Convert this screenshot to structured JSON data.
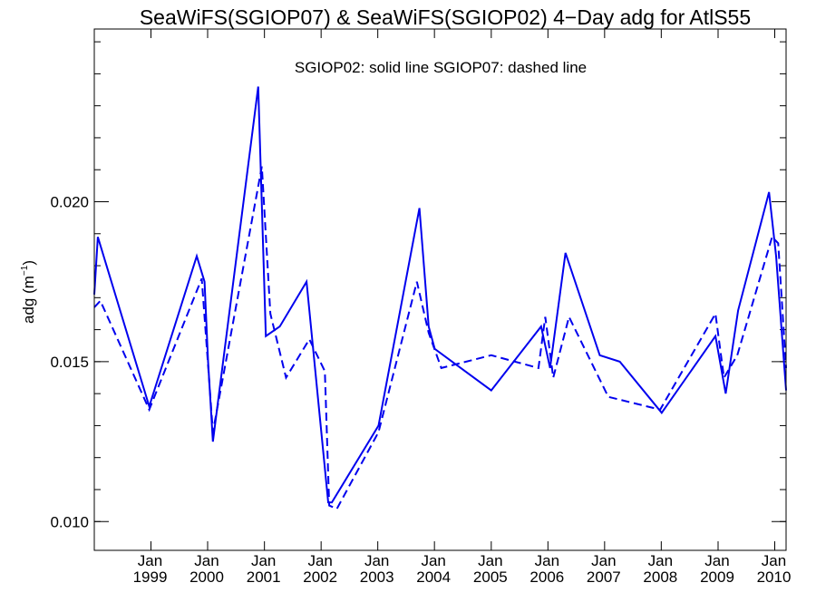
{
  "chart_data": {
    "type": "line",
    "title": "SeaWiFS(SGIOP07) & SeaWiFS(SGIOP02) 4−Day adg for AtlS55",
    "annotation": "SGIOP02: solid line   SGIOP07: dashed line",
    "ylabel": "adg (m",
    "ylabel_sup": "−1",
    "ylabel_close": ")",
    "xlim": [
      "1998-01-01",
      "2010-03-15"
    ],
    "ylim": [
      0.0091,
      0.0254
    ],
    "y_ticks": [
      {
        "value": 0.01,
        "label": "0.010"
      },
      {
        "value": 0.015,
        "label": "0.015"
      },
      {
        "value": 0.02,
        "label": "0.020"
      }
    ],
    "x_ticks": [
      {
        "date": "1999-01-01",
        "month": "Jan",
        "year": "1999"
      },
      {
        "date": "2000-01-01",
        "month": "Jan",
        "year": "2000"
      },
      {
        "date": "2001-01-01",
        "month": "Jan",
        "year": "2001"
      },
      {
        "date": "2002-01-01",
        "month": "Jan",
        "year": "2002"
      },
      {
        "date": "2003-01-01",
        "month": "Jan",
        "year": "2003"
      },
      {
        "date": "2004-01-01",
        "month": "Jan",
        "year": "2004"
      },
      {
        "date": "2005-01-01",
        "month": "Jan",
        "year": "2005"
      },
      {
        "date": "2006-01-01",
        "month": "Jan",
        "year": "2006"
      },
      {
        "date": "2007-01-01",
        "month": "Jan",
        "year": "2007"
      },
      {
        "date": "2008-01-01",
        "month": "Jan",
        "year": "2008"
      },
      {
        "date": "2009-01-01",
        "month": "Jan",
        "year": "2009"
      },
      {
        "date": "2010-01-01",
        "month": "Jan",
        "year": "2010"
      }
    ],
    "grid": false,
    "color": "#0000ee",
    "series": [
      {
        "name": "SGIOP02",
        "style": "solid",
        "points": [
          {
            "x": "1998-01-01",
            "y": 0.0171
          },
          {
            "x": "1998-01-24",
            "y": 0.0189
          },
          {
            "x": "1998-12-21",
            "y": 0.0136
          },
          {
            "x": "1999-10-23",
            "y": 0.0183
          },
          {
            "x": "1999-12-12",
            "y": 0.0175
          },
          {
            "x": "2000-01-04",
            "y": 0.015
          },
          {
            "x": "2000-02-04",
            "y": 0.0125
          },
          {
            "x": "2000-11-22",
            "y": 0.0236
          },
          {
            "x": "2001-01-10",
            "y": 0.0158
          },
          {
            "x": "2001-04-10",
            "y": 0.0161
          },
          {
            "x": "2001-09-29",
            "y": 0.0175
          },
          {
            "x": "2002-02-16",
            "y": 0.0106
          },
          {
            "x": "2002-03-11",
            "y": 0.0106
          },
          {
            "x": "2003-01-06",
            "y": 0.013
          },
          {
            "x": "2003-09-26",
            "y": 0.0198
          },
          {
            "x": "2003-11-25",
            "y": 0.0161
          },
          {
            "x": "2004-01-03",
            "y": 0.0154
          },
          {
            "x": "2005-01-01",
            "y": 0.0141
          },
          {
            "x": "2005-11-18",
            "y": 0.0161
          },
          {
            "x": "2006-01-15",
            "y": 0.0148
          },
          {
            "x": "2006-04-24",
            "y": 0.0184
          },
          {
            "x": "2006-12-01",
            "y": 0.0152
          },
          {
            "x": "2007-04-09",
            "y": 0.015
          },
          {
            "x": "2008-01-04",
            "y": 0.0134
          },
          {
            "x": "2008-12-15",
            "y": 0.0158
          },
          {
            "x": "2009-02-19",
            "y": 0.014
          },
          {
            "x": "2009-05-10",
            "y": 0.0166
          },
          {
            "x": "2009-11-25",
            "y": 0.0203
          },
          {
            "x": "2010-01-10",
            "y": 0.0183
          },
          {
            "x": "2010-03-15",
            "y": 0.0141
          }
        ]
      },
      {
        "name": "SGIOP07",
        "style": "dashed",
        "points": [
          {
            "x": "1998-01-01",
            "y": 0.0167
          },
          {
            "x": "1998-02-09",
            "y": 0.0169
          },
          {
            "x": "1998-12-21",
            "y": 0.0135
          },
          {
            "x": "1999-11-24",
            "y": 0.0176
          },
          {
            "x": "2000-01-10",
            "y": 0.0145
          },
          {
            "x": "2000-02-04",
            "y": 0.0128
          },
          {
            "x": "2000-12-15",
            "y": 0.0211
          },
          {
            "x": "2001-02-08",
            "y": 0.0165
          },
          {
            "x": "2001-05-20",
            "y": 0.0145
          },
          {
            "x": "2001-10-17",
            "y": 0.0157
          },
          {
            "x": "2002-01-25",
            "y": 0.0147
          },
          {
            "x": "2002-02-22",
            "y": 0.0105
          },
          {
            "x": "2002-04-13",
            "y": 0.0104
          },
          {
            "x": "2003-01-06",
            "y": 0.0128
          },
          {
            "x": "2003-09-10",
            "y": 0.0175
          },
          {
            "x": "2003-11-25",
            "y": 0.0159
          },
          {
            "x": "2004-02-14",
            "y": 0.0148
          },
          {
            "x": "2005-01-01",
            "y": 0.0152
          },
          {
            "x": "2005-11-01",
            "y": 0.0148
          },
          {
            "x": "2005-12-15",
            "y": 0.0164
          },
          {
            "x": "2006-02-04",
            "y": 0.0145
          },
          {
            "x": "2006-05-17",
            "y": 0.0164
          },
          {
            "x": "2007-01-25",
            "y": 0.0139
          },
          {
            "x": "2007-12-25",
            "y": 0.0135
          },
          {
            "x": "2008-12-15",
            "y": 0.0165
          },
          {
            "x": "2009-02-08",
            "y": 0.0145
          },
          {
            "x": "2009-05-05",
            "y": 0.0152
          },
          {
            "x": "2009-12-15",
            "y": 0.0189
          },
          {
            "x": "2010-01-23",
            "y": 0.0187
          },
          {
            "x": "2010-03-15",
            "y": 0.0148
          }
        ]
      }
    ]
  }
}
